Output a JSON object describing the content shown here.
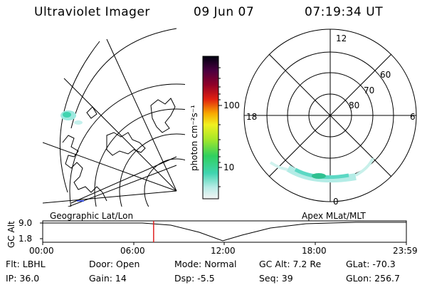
{
  "header": {
    "instrument": "Ultraviolet Imager",
    "date": "09 Jun 07",
    "time": "07:19:34 UT"
  },
  "geo_panel": {
    "label": "Geographic Lat/Lon"
  },
  "apex_panel": {
    "label": "Apex MLat/MLT",
    "mlt_labels": {
      "top": "12",
      "left": "18",
      "right": "6",
      "bottom": "0"
    },
    "lat_labels": [
      "60",
      "70",
      "80"
    ]
  },
  "colorbar": {
    "unit_label": "photon cm⁻²s⁻¹",
    "ticks": [
      "100",
      "10"
    ],
    "scale": "log"
  },
  "timeline": {
    "axis_label": "GC Alt",
    "y_ticks": [
      "9.0",
      "1.8"
    ],
    "x_ticks": [
      "00:00",
      "06:00",
      "12:00",
      "18:00",
      "23:59"
    ],
    "current_time_fraction": 0.305
  },
  "info": {
    "flt": "Flt: LBHL",
    "ip": "IP: 36.0",
    "door": "Door: Open",
    "gain": "Gain: 14",
    "mode": "Mode: Normal",
    "dsp": "Dsp:    -5.5",
    "gc_alt": "GC Alt: 7.2 Re",
    "seq": "Seq: 39",
    "glat": "GLat: -70.3",
    "glon": "GLon: 256.7"
  }
}
